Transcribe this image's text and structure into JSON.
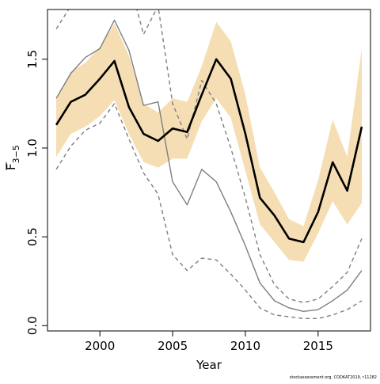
{
  "chart_data": {
    "type": "line",
    "title": "",
    "xlabel": "Year",
    "ylabel": "F",
    "ylabel_subscript": "3−5",
    "xlim": [
      1996.4,
      2018.6
    ],
    "ylim": [
      -0.03,
      1.78
    ],
    "x_ticks": [
      2000,
      2005,
      2010,
      2015
    ],
    "x_tick_labels": [
      "2000",
      "2005",
      "2010",
      "2015"
    ],
    "y_ticks": [
      0.0,
      0.5,
      1.0,
      1.5
    ],
    "y_tick_labels": [
      "0.0",
      "0.5",
      "1.0",
      "1.5"
    ],
    "grid": false,
    "legend": "none",
    "x": [
      1997,
      1998,
      1999,
      2000,
      2001,
      2002,
      2003,
      2004,
      2005,
      2006,
      2007,
      2008,
      2009,
      2010,
      2011,
      2012,
      2013,
      2014,
      2015,
      2016,
      2017,
      2018
    ],
    "series": [
      {
        "role": "band",
        "color": "#f5deb3",
        "upper": [
          1.28,
          1.43,
          1.48,
          1.57,
          1.7,
          1.52,
          1.25,
          1.2,
          1.28,
          1.26,
          1.46,
          1.71,
          1.6,
          1.3,
          0.89,
          0.75,
          0.6,
          0.56,
          0.82,
          1.16,
          0.95,
          1.56
        ],
        "lower": [
          0.95,
          1.08,
          1.12,
          1.18,
          1.27,
          1.08,
          0.92,
          0.89,
          0.94,
          0.94,
          1.15,
          1.28,
          1.17,
          0.87,
          0.57,
          0.47,
          0.37,
          0.36,
          0.52,
          0.7,
          0.57,
          0.69
        ]
      },
      {
        "role": "estimate",
        "color": "#000000",
        "values": [
          1.13,
          1.26,
          1.3,
          1.39,
          1.49,
          1.23,
          1.08,
          1.04,
          1.11,
          1.09,
          1.3,
          1.5,
          1.39,
          1.08,
          0.72,
          0.62,
          0.49,
          0.47,
          0.64,
          0.92,
          0.76,
          1.12
        ]
      },
      {
        "role": "comparison",
        "color": "#7f7f7f",
        "values": [
          1.28,
          1.42,
          1.51,
          1.56,
          1.72,
          1.55,
          1.24,
          1.26,
          0.81,
          0.68,
          0.88,
          0.81,
          0.64,
          0.45,
          0.24,
          0.14,
          0.1,
          0.08,
          0.09,
          0.14,
          0.2,
          0.31
        ]
      },
      {
        "role": "comparison_upper",
        "color": "#7f7f7f",
        "dashed": true,
        "values": [
          1.67,
          1.8,
          1.95,
          2.0,
          2.1,
          1.95,
          1.64,
          1.8,
          1.25,
          1.05,
          1.38,
          1.25,
          1.0,
          0.72,
          0.4,
          0.23,
          0.15,
          0.13,
          0.15,
          0.22,
          0.3,
          0.49
        ]
      },
      {
        "role": "comparison_lower",
        "color": "#7f7f7f",
        "dashed": true,
        "values": [
          0.88,
          1.01,
          1.1,
          1.14,
          1.25,
          1.05,
          0.86,
          0.74,
          0.4,
          0.31,
          0.38,
          0.37,
          0.29,
          0.2,
          0.1,
          0.06,
          0.05,
          0.04,
          0.04,
          0.06,
          0.09,
          0.14
        ]
      }
    ]
  },
  "credit": "stockassessment.org, CODKAT2019, r11282"
}
